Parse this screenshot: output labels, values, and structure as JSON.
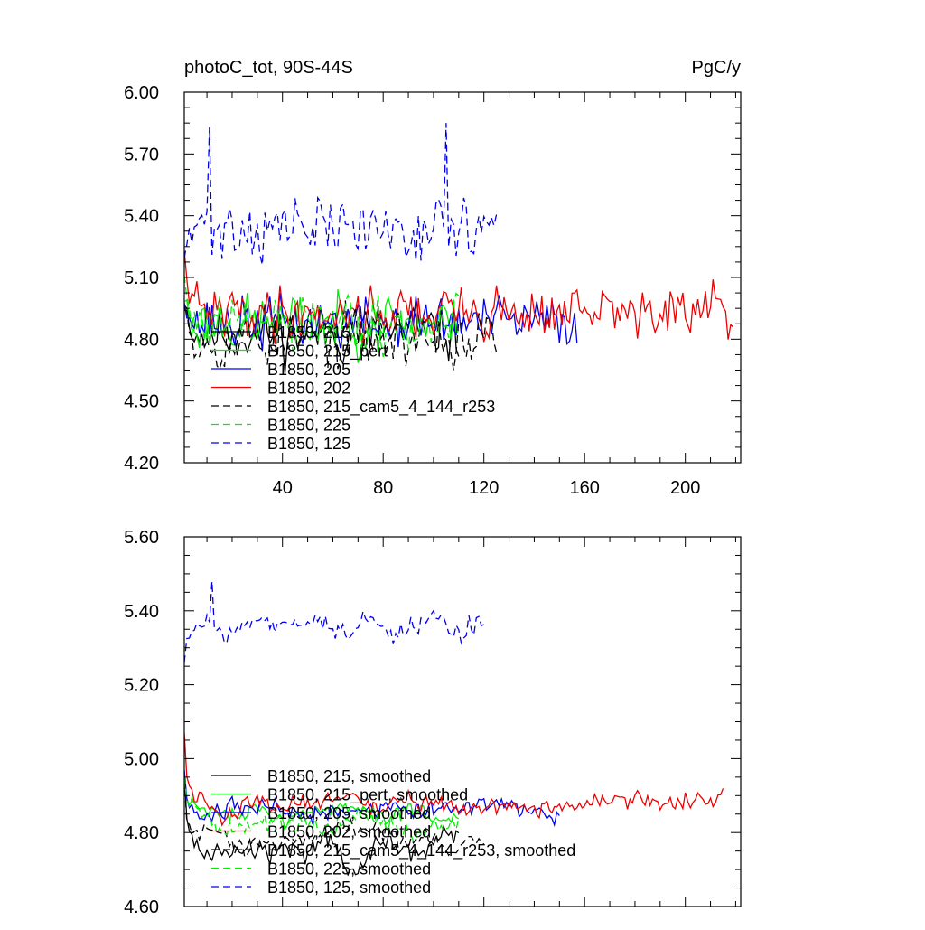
{
  "chart_data": [
    {
      "type": "line",
      "title": "photoC_tot, 90S-44S",
      "units": "PgC/y",
      "xlim": [
        1,
        222
      ],
      "ylim": [
        4.2,
        6.0
      ],
      "x_ticks": [
        40,
        80,
        120,
        160,
        200
      ],
      "y_ticks": [
        4.2,
        4.5,
        4.8,
        5.1,
        5.4,
        5.7,
        6.0
      ],
      "y_tick_labels": [
        "4.20",
        "4.50",
        "4.80",
        "5.10",
        "5.40",
        "5.70",
        "6.00"
      ],
      "legend": "lower-left",
      "series": [
        {
          "name": "B1850, 215",
          "color": "#000000",
          "dash": "solid",
          "length": 110,
          "base": 4.83,
          "noise": 0.15,
          "seed": 11,
          "start": 5.0
        },
        {
          "name": "B1850, 215_pert",
          "color": "#00ee00",
          "dash": "solid",
          "length": 110,
          "base": 4.88,
          "noise": 0.15,
          "seed": 23,
          "start": 5.0
        },
        {
          "name": "B1850, 205",
          "color": "#0000ee",
          "dash": "solid",
          "length": 157,
          "base": 4.88,
          "noise": 0.14,
          "seed": 37,
          "start": 5.0
        },
        {
          "name": "B1850, 202",
          "color": "#ee0000",
          "dash": "solid",
          "length": 219,
          "base": 4.93,
          "noise": 0.14,
          "seed": 41,
          "start": 5.2
        },
        {
          "name": "B1850, 215_cam5_4_144_r253",
          "color": "#000000",
          "dash": "dashed",
          "length": 125,
          "base": 4.8,
          "noise": 0.15,
          "seed": 53,
          "start": 5.0
        },
        {
          "name": "B1850, 225",
          "color": "#00ee00",
          "dash": "dashed",
          "length": 110,
          "base": 4.86,
          "noise": 0.16,
          "seed": 61,
          "start": 5.1
        },
        {
          "name": "B1850, 125",
          "color": "#0000ee",
          "dash": "dashed",
          "length": 125,
          "base": 5.34,
          "noise": 0.17,
          "seed": 71,
          "start": 5.2,
          "peaks": [
            [
              11,
              5.83
            ],
            [
              105,
              5.85
            ]
          ]
        }
      ]
    },
    {
      "type": "line",
      "xlim": [
        1,
        222
      ],
      "ylim": [
        4.6,
        5.6
      ],
      "x_ticks": [
        40,
        80,
        120,
        160,
        200
      ],
      "y_ticks": [
        4.6,
        4.8,
        5.0,
        5.2,
        5.4,
        5.6
      ],
      "y_tick_labels": [
        "4.60",
        "4.80",
        "5.00",
        "5.20",
        "5.40",
        "5.60"
      ],
      "legend": "lower-left",
      "series": [
        {
          "name": "B1850, 215, smoothed",
          "color": "#000000",
          "dash": "solid",
          "length": 110,
          "base": 4.76,
          "noise": 0.1,
          "seed": 111,
          "start": 4.96,
          "smooth": 6
        },
        {
          "name": "B1850, 215_pert, smoothed",
          "color": "#00ee00",
          "dash": "solid",
          "length": 110,
          "base": 4.85,
          "noise": 0.09,
          "seed": 123,
          "start": 4.95,
          "smooth": 6
        },
        {
          "name": "B1850, 205, smoothed",
          "color": "#0000ee",
          "dash": "solid",
          "length": 150,
          "base": 4.86,
          "noise": 0.08,
          "seed": 137,
          "start": 4.97,
          "smooth": 6
        },
        {
          "name": "B1850, 202, smoothed",
          "color": "#ee0000",
          "dash": "solid",
          "length": 215,
          "base": 4.88,
          "noise": 0.08,
          "seed": 141,
          "start": 5.07,
          "smooth": 6
        },
        {
          "name": "B1850, 215_cam5_4_144_r253, smoothed",
          "color": "#000000",
          "dash": "dashed",
          "length": 120,
          "base": 4.78,
          "noise": 0.09,
          "seed": 153,
          "start": 4.95,
          "smooth": 6
        },
        {
          "name": "B1850, 225, smoothed",
          "color": "#00ee00",
          "dash": "dashed",
          "length": 110,
          "base": 4.83,
          "noise": 0.09,
          "seed": 161,
          "start": 4.95,
          "smooth": 6
        },
        {
          "name": "B1850, 125, smoothed",
          "color": "#0000ee",
          "dash": "dashed",
          "length": 120,
          "base": 5.36,
          "noise": 0.09,
          "seed": 171,
          "start": 5.26,
          "smooth": 5,
          "peaks": [
            [
              12,
              5.48
            ]
          ]
        }
      ]
    }
  ]
}
